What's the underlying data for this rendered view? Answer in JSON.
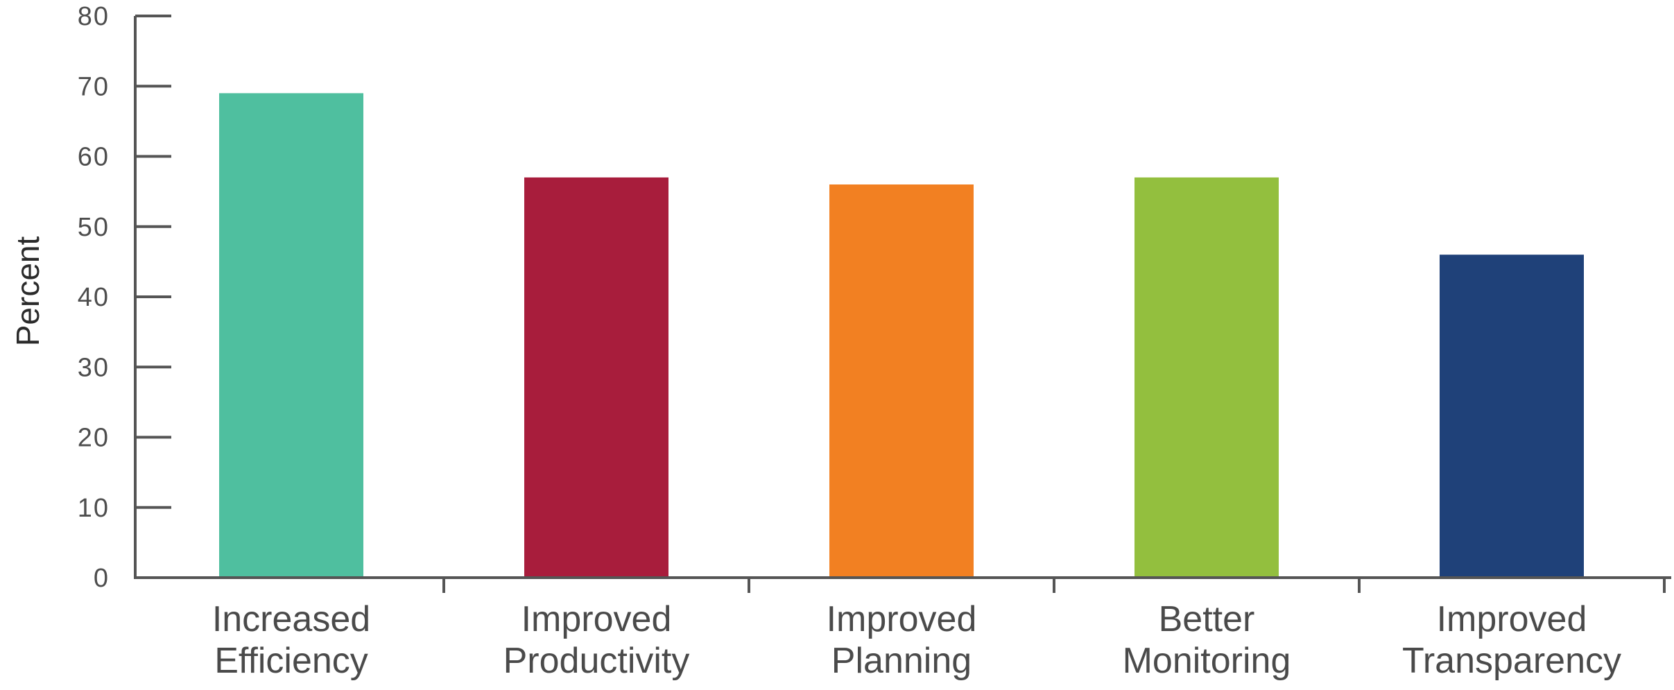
{
  "chart_data": {
    "type": "bar",
    "title": "",
    "xlabel": "",
    "ylabel": "Percent",
    "ylim": [
      0,
      80
    ],
    "yticks": [
      0,
      10,
      20,
      30,
      40,
      50,
      60,
      70,
      80
    ],
    "grid": false,
    "legend": "none",
    "categories": [
      [
        "Increased",
        "Efficiency"
      ],
      [
        "Improved",
        "Productivity"
      ],
      [
        "Improved",
        "Planning"
      ],
      [
        "Better",
        "Monitoring"
      ],
      [
        "Improved",
        "Transparency"
      ]
    ],
    "values": [
      69,
      57,
      56,
      57,
      46
    ],
    "colors": [
      "#4fbf9f",
      "#a81d3c",
      "#f28022",
      "#93bf3e",
      "#1f4179"
    ],
    "axis_color": "#555555",
    "tick_label_color": "#4d4d4d",
    "category_label_color": "#4a4a4a"
  }
}
